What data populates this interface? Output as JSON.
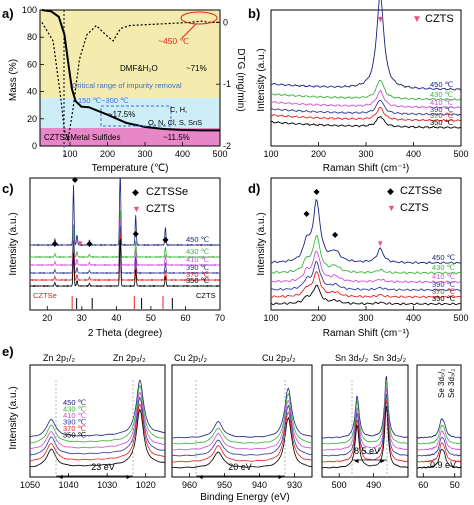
{
  "colors": {
    "black": "#000000",
    "red": "#e8211f",
    "pink": "#e75480",
    "magenta": "#d24fd6",
    "blue": "#2f3c9c",
    "green": "#3cb43c",
    "navy": "#1a237e",
    "band_yellow": "#f3ecae",
    "band_cyan": "#cdeef7",
    "band_magenta": "#e887c8",
    "orange": "#f15a24",
    "annot_blue": "#3d6fd6"
  },
  "panel_a": {
    "letter": "a)",
    "ylabel": "Mass (%)",
    "y2label": "DTG (mg/min)",
    "xlabel": "Temperature (℃)",
    "xticks": [
      "100",
      "200",
      "300",
      "400",
      "500"
    ],
    "yticks": [
      "0",
      "20",
      "40",
      "60",
      "80",
      "100"
    ],
    "y2ticks": [
      "0",
      "-1",
      "-2"
    ],
    "peak_label": "~450 ℃",
    "dmf_label": "DMF&H₂O",
    "dmf_value": "~71%",
    "critical_label_1": "Critical range of impurity removal",
    "critical_label_2": "150 ℃~300 ℃",
    "impurity_value": "~17.5%",
    "impurity_species_1": "C, H,",
    "impurity_species_2": "O, N, Cl, S, SnS",
    "sulfide_label": "CZTS&Metal Sulfides",
    "sulfide_value": "~11.5%"
  },
  "panel_b": {
    "letter": "b)",
    "ylabel": "Intensity (a.u.)",
    "xlabel": "Raman Shift (cm⁻¹)",
    "xticks": [
      "100",
      "200",
      "300",
      "400",
      "500"
    ],
    "legend": "CZTS",
    "series_labels": [
      "450 ℃",
      "430 ℃",
      "410 ℃",
      "390 ℃",
      "370 ℃",
      "350 ℃"
    ]
  },
  "panel_c": {
    "letter": "c)",
    "ylabel": "Intensity (a.u.)",
    "xlabel": "2 Theta (degree)",
    "xticks": [
      "20",
      "30",
      "40",
      "50",
      "60",
      "70"
    ],
    "legend_1": "CZTSSe",
    "legend_2": "CZTS",
    "ref_label_1": "CZTSe",
    "ref_label_2": "CZTS",
    "series_labels": [
      "450 ℃",
      "430 ℃",
      "410 ℃",
      "390 ℃",
      "370 ℃",
      "350 ℃"
    ]
  },
  "panel_d": {
    "letter": "d)",
    "ylabel": "Intensity (a.u.)",
    "xlabel": "Raman Shift (cm⁻¹)",
    "xticks": [
      "100",
      "200",
      "300",
      "400",
      "500"
    ],
    "legend_1": "CZTSSe",
    "legend_2": "CZTS",
    "series_labels": [
      "450 ℃",
      "430 ℃",
      "410 ℃",
      "390 ℃",
      "370 ℃",
      "350 ℃"
    ]
  },
  "panel_e": {
    "letter": "e)",
    "ylabel": "Intensity (a.u.)",
    "xlabel": "Binding Energy (eV)",
    "xticks": [
      "1050",
      "1040",
      "1030",
      "1020",
      "960",
      "950",
      "940",
      "930",
      "500",
      "490",
      "60",
      "50"
    ],
    "zn_half": "Zn 2p₁/₂",
    "zn_32": "Zn 2p₃/₂",
    "cu_half": "Cu 2p₁/₂",
    "cu_32": "Cu 2p₃/₂",
    "sn_52": "Sn 3d₅/₂",
    "sn_32": "Sn 3d₃/₂",
    "se_52": "Se 3d₅/₂",
    "se_32": "Se 3d₃/₂",
    "zn_split": "23 eV",
    "cu_split": "20 eV",
    "sn_split": "8.5 eV",
    "se_split": "0.9 eV",
    "series_labels": [
      "450 ℃",
      "430 ℃",
      "410 ℃",
      "390 ℃",
      "370 ℃",
      "350 ℃"
    ]
  },
  "chart_data": [
    {
      "type": "line",
      "panel": "a",
      "xlabel": "Temperature (℃)",
      "ylabel": "Mass (%)",
      "y2label": "DTG (mg/min)",
      "xlim": [
        20,
        500
      ],
      "ylim": [
        0,
        100
      ],
      "y2lim": [
        -2,
        0.2
      ],
      "series": [
        {
          "values": [
            [
              25,
              100
            ],
            [
              50,
              99
            ],
            [
              70,
              95
            ],
            [
              85,
              82
            ],
            [
              95,
              62
            ],
            [
              105,
              42
            ],
            [
              115,
              33
            ],
            [
              130,
              29
            ],
            [
              150,
              28.5
            ],
            [
              200,
              23
            ],
            [
              250,
              17
            ],
            [
              300,
              14
            ],
            [
              350,
              12.5
            ],
            [
              400,
              11.8
            ],
            [
              450,
              11.5
            ],
            [
              500,
              11.5
            ]
          ]
        },
        {
          "values": [
            [
              25,
              0
            ],
            [
              55,
              -0.3
            ],
            [
              75,
              -1.2
            ],
            [
              85,
              -1.75
            ],
            [
              95,
              -1.9
            ],
            [
              108,
              -1.4
            ],
            [
              125,
              -0.6
            ],
            [
              145,
              -0.2
            ],
            [
              170,
              -0.05
            ],
            [
              195,
              -0.2
            ],
            [
              215,
              -0.3
            ],
            [
              235,
              -0.1
            ],
            [
              260,
              -0.05
            ],
            [
              420,
              0
            ],
            [
              450,
              0.02
            ],
            [
              470,
              0
            ],
            [
              500,
              0
            ]
          ]
        }
      ]
    },
    {
      "type": "line",
      "panel": "b",
      "xlabel": "Raman Shift (cm⁻¹)",
      "ylabel": "Intensity (a.u.)",
      "xlim": [
        100,
        500
      ],
      "peak_position": 330,
      "series": [
        {
          "name": "450 ℃",
          "peak_height": 1.0
        },
        {
          "name": "430 ℃",
          "peak_height": 0.55
        },
        {
          "name": "410 ℃",
          "peak_height": 0.45
        },
        {
          "name": "390 ℃",
          "peak_height": 0.4
        },
        {
          "name": "370 ℃",
          "peak_height": 0.35
        },
        {
          "name": "350 ℃",
          "peak_height": 0.3
        }
      ]
    },
    {
      "type": "line",
      "panel": "c",
      "xlabel": "2 Theta (degree)",
      "ylabel": "Intensity (a.u.)",
      "xlim": [
        15,
        70
      ],
      "peaks_2theta": [
        22.2,
        27.5,
        28.5,
        32.2,
        41,
        45.5,
        54.2
      ],
      "czts_reference_2theta": [
        28.5,
        33,
        47.3,
        56.2
      ],
      "czt_se_reference_2theta": [
        27.2,
        45.2,
        53.5
      ],
      "series": [
        {
          "name": "450 ℃"
        },
        {
          "name": "430 ℃"
        },
        {
          "name": "410 ℃"
        },
        {
          "name": "390 ℃"
        },
        {
          "name": "370 ℃"
        },
        {
          "name": "350 ℃"
        }
      ]
    },
    {
      "type": "line",
      "panel": "d",
      "xlabel": "Raman Shift (cm⁻¹)",
      "ylabel": "Intensity (a.u.)",
      "xlim": [
        100,
        500
      ],
      "peaks_cm": [
        175,
        196,
        235,
        330
      ],
      "series": [
        {
          "name": "450 ℃"
        },
        {
          "name": "430 ℃"
        },
        {
          "name": "410 ℃"
        },
        {
          "name": "390 ℃"
        },
        {
          "name": "370 ℃"
        },
        {
          "name": "350 ℃"
        }
      ]
    },
    {
      "type": "line",
      "panel": "e",
      "xlabel": "Binding Energy (eV)",
      "ylabel": "Intensity (a.u.)",
      "peaks_eV": {
        "Zn 2p1/2": 1044.5,
        "Zn 2p3/2": 1021.5,
        "Cu 2p1/2": 951.8,
        "Cu 2p3/2": 931.8,
        "Sn 3d5/2": 494.8,
        "Sn 3d3/2": 486.3,
        "Se 3d": 54
      },
      "splittings_eV": {
        "Zn": 23,
        "Cu": 20,
        "Sn": 8.5,
        "Se": 0.9
      },
      "series": [
        {
          "name": "450 ℃"
        },
        {
          "name": "430 ℃"
        },
        {
          "name": "410 ℃"
        },
        {
          "name": "390 ℃"
        },
        {
          "name": "370 ℃"
        },
        {
          "name": "350 ℃"
        }
      ]
    }
  ]
}
